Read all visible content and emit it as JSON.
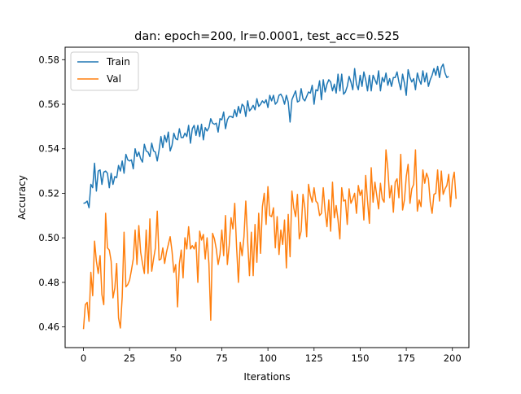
{
  "chart_data": {
    "type": "line",
    "title": "dan: epoch=200, lr=0.0001, test_acc=0.525",
    "xlabel": "Iterations",
    "ylabel": "Accuracy",
    "xlim": [
      -9.95,
      208.95
    ],
    "ylim": [
      0.4507,
      0.5856
    ],
    "xticks": [
      0,
      25,
      50,
      75,
      100,
      125,
      150,
      175,
      200
    ],
    "xtick_labels": [
      "0",
      "25",
      "50",
      "75",
      "100",
      "125",
      "150",
      "175",
      "200"
    ],
    "yticks": [
      0.46,
      0.48,
      0.5,
      0.52,
      0.54,
      0.56,
      0.58
    ],
    "ytick_labels": [
      "0.46",
      "0.48",
      "0.50",
      "0.52",
      "0.54",
      "0.56",
      "0.58"
    ],
    "grid": false,
    "legend_position": "upper left",
    "x": {
      "start": 0,
      "end": 199,
      "step": 1
    },
    "series": [
      {
        "name": "Train",
        "color": "#1f77b4",
        "values": [
          0.5155,
          0.5157,
          0.5165,
          0.5135,
          0.524,
          0.5225,
          0.5335,
          0.521,
          0.53,
          0.5305,
          0.524,
          0.5295,
          0.53,
          0.529,
          0.5225,
          0.529,
          0.524,
          0.5275,
          0.527,
          0.5325,
          0.53,
          0.5345,
          0.529,
          0.5375,
          0.535,
          0.5345,
          0.535,
          0.531,
          0.54,
          0.5365,
          0.5385,
          0.5355,
          0.534,
          0.542,
          0.539,
          0.5385,
          0.5365,
          0.5425,
          0.539,
          0.5385,
          0.5345,
          0.5395,
          0.5455,
          0.5405,
          0.546,
          0.543,
          0.5475,
          0.539,
          0.5415,
          0.547,
          0.5445,
          0.544,
          0.549,
          0.545,
          0.545,
          0.547,
          0.5455,
          0.5505,
          0.5425,
          0.549,
          0.5505,
          0.546,
          0.5505,
          0.5455,
          0.551,
          0.544,
          0.5495,
          0.548,
          0.5495,
          0.5535,
          0.5515,
          0.551,
          0.5515,
          0.5475,
          0.5535,
          0.553,
          0.5565,
          0.549,
          0.553,
          0.5545,
          0.5545,
          0.554,
          0.5575,
          0.5545,
          0.559,
          0.556,
          0.56,
          0.559,
          0.5545,
          0.5615,
          0.557,
          0.558,
          0.5595,
          0.5575,
          0.5625,
          0.559,
          0.56,
          0.5615,
          0.5605,
          0.562,
          0.5585,
          0.564,
          0.5615,
          0.564,
          0.56,
          0.561,
          0.564,
          0.5645,
          0.563,
          0.56,
          0.564,
          0.561,
          0.552,
          0.562,
          0.564,
          0.566,
          0.561,
          0.5615,
          0.567,
          0.5625,
          0.5615,
          0.5635,
          0.5655,
          0.565,
          0.5685,
          0.56,
          0.5665,
          0.566,
          0.5705,
          0.562,
          0.571,
          0.5655,
          0.569,
          0.571,
          0.57,
          0.566,
          0.569,
          0.565,
          0.5735,
          0.566,
          0.5735,
          0.5645,
          0.5655,
          0.568,
          0.5725,
          0.57,
          0.5665,
          0.576,
          0.569,
          0.5665,
          0.573,
          0.568,
          0.5745,
          0.571,
          0.566,
          0.573,
          0.566,
          0.573,
          0.571,
          0.569,
          0.575,
          0.566,
          0.572,
          0.57,
          0.574,
          0.5685,
          0.5715,
          0.568,
          0.572,
          0.572,
          0.5745,
          0.57,
          0.5665,
          0.5735,
          0.5695,
          0.564,
          0.5755,
          0.572,
          0.57,
          0.5715,
          0.5665,
          0.574,
          0.571,
          0.569,
          0.575,
          0.57,
          0.574,
          0.568,
          0.571,
          0.573,
          0.576,
          0.573,
          0.577,
          0.572,
          0.5765,
          0.578,
          0.574,
          0.572,
          0.5725
        ]
      },
      {
        "name": "Val",
        "color": "#ff7f0e",
        "values": [
          0.459,
          0.47,
          0.471,
          0.4625,
          0.4845,
          0.474,
          0.4985,
          0.4895,
          0.484,
          0.492,
          0.4745,
          0.47,
          0.511,
          0.4955,
          0.4945,
          0.4895,
          0.473,
          0.4775,
          0.4885,
          0.464,
          0.4595,
          0.4735,
          0.5025,
          0.478,
          0.479,
          0.481,
          0.4855,
          0.4905,
          0.5035,
          0.488,
          0.5055,
          0.4935,
          0.4885,
          0.484,
          0.5035,
          0.484,
          0.5085,
          0.485,
          0.4905,
          0.4955,
          0.512,
          0.49,
          0.4905,
          0.4955,
          0.4885,
          0.4935,
          0.497,
          0.5005,
          0.494,
          0.4845,
          0.488,
          0.469,
          0.4885,
          0.4945,
          0.482,
          0.5,
          0.495,
          0.505,
          0.495,
          0.4965,
          0.495,
          0.498,
          0.48,
          0.503,
          0.499,
          0.5015,
          0.4905,
          0.5,
          0.4885,
          0.463,
          0.502,
          0.4995,
          0.495,
          0.488,
          0.4925,
          0.5035,
          0.492,
          0.51,
          0.488,
          0.4965,
          0.509,
          0.504,
          0.5155,
          0.496,
          0.48,
          0.498,
          0.492,
          0.5005,
          0.5165,
          0.4985,
          0.483,
          0.5025,
          0.483,
          0.506,
          0.489,
          0.511,
          0.493,
          0.514,
          0.52,
          0.506,
          0.523,
          0.51,
          0.5095,
          0.5135,
          0.4955,
          0.5095,
          0.4925,
          0.5035,
          0.497,
          0.508,
          0.4865,
          0.5105,
          0.4915,
          0.521,
          0.5135,
          0.5095,
          0.5195,
          0.4995,
          0.503,
          0.5195,
          0.5135,
          0.5005,
          0.524,
          0.519,
          0.516,
          0.5225,
          0.5165,
          0.5155,
          0.51,
          0.511,
          0.5225,
          0.512,
          0.505,
          0.517,
          0.503,
          0.525,
          0.509,
          0.5145,
          0.508,
          0.4995,
          0.5225,
          0.5165,
          0.517,
          0.506,
          0.522,
          0.5155,
          0.5175,
          0.52,
          0.511,
          0.5235,
          0.519,
          0.5215,
          0.508,
          0.528,
          0.5165,
          0.5065,
          0.5315,
          0.516,
          0.525,
          0.519,
          0.513,
          0.5245,
          0.5175,
          0.516,
          0.5395,
          0.531,
          0.518,
          0.5235,
          0.5115,
          0.525,
          0.5265,
          0.518,
          0.5375,
          0.5125,
          0.517,
          0.5275,
          0.533,
          0.5155,
          0.522,
          0.524,
          0.5395,
          0.512,
          0.517,
          0.514,
          0.5305,
          0.5245,
          0.529,
          0.5265,
          0.516,
          0.511,
          0.5195,
          0.52,
          0.5305,
          0.5165,
          0.53,
          0.5195,
          0.522,
          0.5235,
          0.5285,
          0.514,
          0.5255,
          0.5295,
          0.5175
        ]
      }
    ]
  }
}
